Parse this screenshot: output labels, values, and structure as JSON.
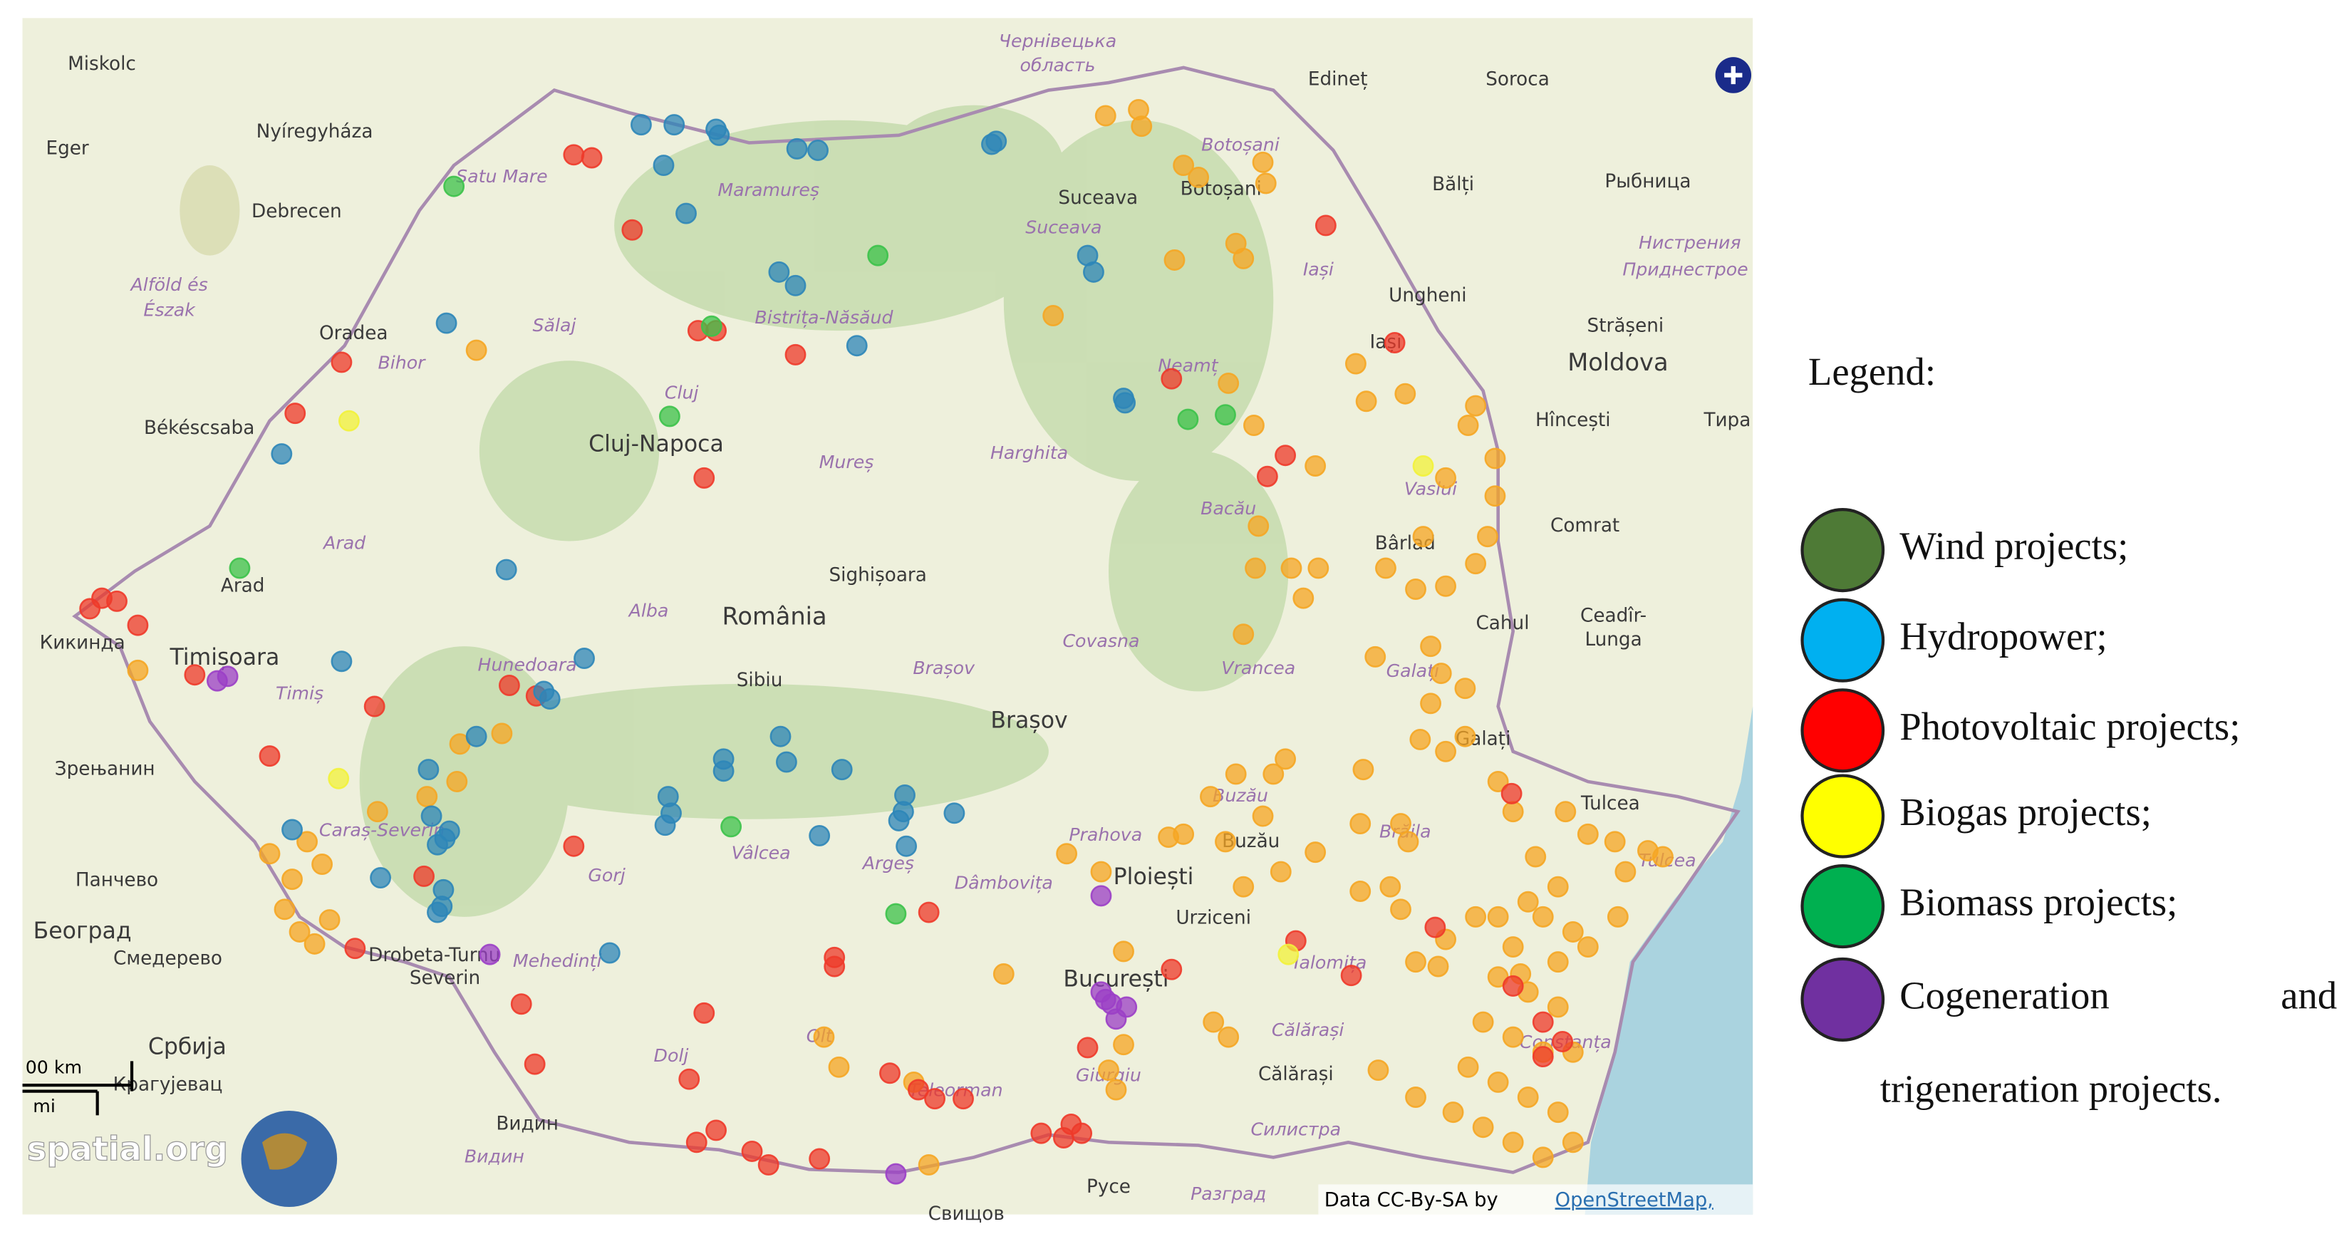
{
  "map": {
    "place_names": [
      "Miskolc",
      "Eger",
      "Nyíregyháza",
      "Debrecen",
      "Oradea",
      "Békéscsaba",
      "Arad",
      "Timișoara",
      "Кикинда",
      "Зрењанин",
      "Панчево",
      "Београд",
      "Смедерево",
      "Србија",
      "Крагујевац",
      "Видин",
      "Drobeta-Turnu",
      "Severin",
      "Cluj-Napoca",
      "Sighișoara",
      "România",
      "Sibiu",
      "Brașov",
      "Ploiești",
      "Urziceni",
      "București",
      "Русе",
      "Călărași",
      "Suceava",
      "Botoșani",
      "Iași",
      "Ungheni",
      "Bălți",
      "Edineț",
      "Soroca",
      "Рыбница",
      "Strășeni",
      "Moldova",
      "Hîncești",
      "Comrat",
      "Bârlad",
      "Cahul",
      "Ceadîr-",
      "Lunga",
      "Galați",
      "Tulcea",
      "Buzău",
      "Тира",
      "Свищов"
    ],
    "region_names": [
      "Satu Mare",
      "Maramureș",
      "Bistrița-Năsăud",
      "Sălaj",
      "Bihor",
      "Cluj",
      "Mureș",
      "Harghita",
      "Neamț",
      "Suceava",
      "Botoșani",
      "Iași",
      "Vaslui",
      "Bacău",
      "Vrancea",
      "Covasna",
      "Brașov",
      "Alba",
      "Hunedoara",
      "Timiș",
      "Arad",
      "Caraș-Severin",
      "Gorj",
      "Vâlcea",
      "Argeș",
      "Dâmbovița",
      "Prahova",
      "Buzău",
      "Galați",
      "Brăila",
      "Ialomița",
      "Călărași",
      "Constanța",
      "Tulcea",
      "Giurgiu",
      "Teleorman",
      "Olt",
      "Dolj",
      "Mehedinți",
      "Alföld és",
      "Észak",
      "Чернівецька",
      "область",
      "Нистрения",
      "Приднестрое",
      "Видин",
      "Разград",
      "Силистра"
    ],
    "scale": [
      "00 km",
      "mi"
    ],
    "logo": "spatial.org",
    "attribution": {
      "prefix": "Data CC-By-SA by",
      "link": "OpenStreetMap,"
    }
  },
  "legend": {
    "title": "Legend:",
    "items": [
      {
        "label": "Wind projects;",
        "color": "#4e7a36"
      },
      {
        "label": "Hydropower;",
        "color": "#00b0f0"
      },
      {
        "label": "Photovoltaic projects;",
        "color": "#ff0000"
      },
      {
        "label": "Biogas projects;",
        "color": "#ffff00"
      },
      {
        "label": "Biomass projects;",
        "color": "#00b050"
      },
      {
        "lines": [
          "Cogeneration and",
          "trigeneration projects."
        ],
        "color": "#7030a0"
      }
    ]
  }
}
